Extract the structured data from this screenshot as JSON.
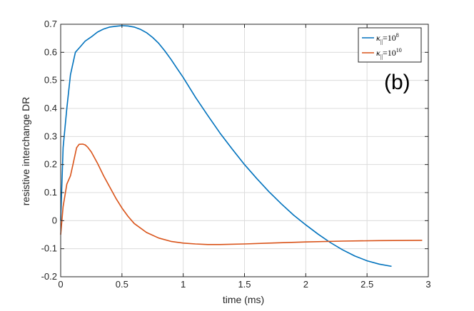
{
  "chart_data": {
    "type": "line",
    "xlabel": "time (ms)",
    "ylabel": "resistive interchange DR",
    "panel_label": "(b)",
    "xlim": [
      0,
      3
    ],
    "ylim": [
      -0.2,
      0.7
    ],
    "xticks": [
      0,
      0.5,
      1,
      1.5,
      2,
      2.5,
      3
    ],
    "xtick_labels": [
      "0",
      "0.5",
      "1",
      "1.5",
      "2",
      "2.5",
      "3"
    ],
    "yticks": [
      -0.2,
      -0.1,
      0,
      0.1,
      0.2,
      0.3,
      0.4,
      0.5,
      0.6,
      0.7
    ],
    "ytick_labels": [
      "-0.2",
      "-0.1",
      "0",
      "0.1",
      "0.2",
      "0.3",
      "0.4",
      "0.5",
      "0.6",
      "0.7"
    ],
    "grid": true,
    "legend_position": "top-right",
    "series": [
      {
        "name": "κ‖=10^8",
        "legend_prefix": "κ",
        "legend_sub": "||",
        "legend_base": "=10",
        "legend_exp": "8",
        "color": "#0072BD",
        "x": [
          0.0,
          0.02,
          0.05,
          0.08,
          0.12,
          0.16,
          0.2,
          0.25,
          0.3,
          0.35,
          0.4,
          0.45,
          0.5,
          0.55,
          0.6,
          0.65,
          0.7,
          0.75,
          0.8,
          0.85,
          0.9,
          0.95,
          1.0,
          1.1,
          1.2,
          1.3,
          1.4,
          1.5,
          1.6,
          1.7,
          1.8,
          1.9,
          2.0,
          2.1,
          2.2,
          2.3,
          2.4,
          2.5,
          2.6,
          2.7
        ],
        "y": [
          0.0,
          0.26,
          0.4,
          0.52,
          0.6,
          0.62,
          0.64,
          0.655,
          0.672,
          0.683,
          0.69,
          0.693,
          0.695,
          0.694,
          0.69,
          0.682,
          0.67,
          0.653,
          0.632,
          0.605,
          0.575,
          0.542,
          0.51,
          0.44,
          0.375,
          0.312,
          0.255,
          0.2,
          0.15,
          0.103,
          0.06,
          0.02,
          -0.015,
          -0.048,
          -0.078,
          -0.104,
          -0.126,
          -0.143,
          -0.155,
          -0.163
        ]
      },
      {
        "name": "κ‖=10^10",
        "legend_prefix": "κ",
        "legend_sub": "||",
        "legend_base": "=10",
        "legend_exp": "10",
        "color": "#D95319",
        "x": [
          0.0,
          0.02,
          0.05,
          0.08,
          0.1,
          0.13,
          0.15,
          0.18,
          0.2,
          0.22,
          0.25,
          0.3,
          0.35,
          0.4,
          0.45,
          0.5,
          0.55,
          0.6,
          0.7,
          0.8,
          0.9,
          1.0,
          1.1,
          1.2,
          1.3,
          1.5,
          1.7,
          2.0,
          2.3,
          2.6,
          2.95
        ],
        "y": [
          -0.05,
          0.05,
          0.13,
          0.16,
          0.2,
          0.26,
          0.272,
          0.273,
          0.27,
          0.262,
          0.245,
          0.205,
          0.16,
          0.12,
          0.08,
          0.045,
          0.015,
          -0.01,
          -0.042,
          -0.062,
          -0.074,
          -0.08,
          -0.083,
          -0.085,
          -0.085,
          -0.083,
          -0.08,
          -0.076,
          -0.073,
          -0.071,
          -0.07
        ]
      }
    ]
  }
}
